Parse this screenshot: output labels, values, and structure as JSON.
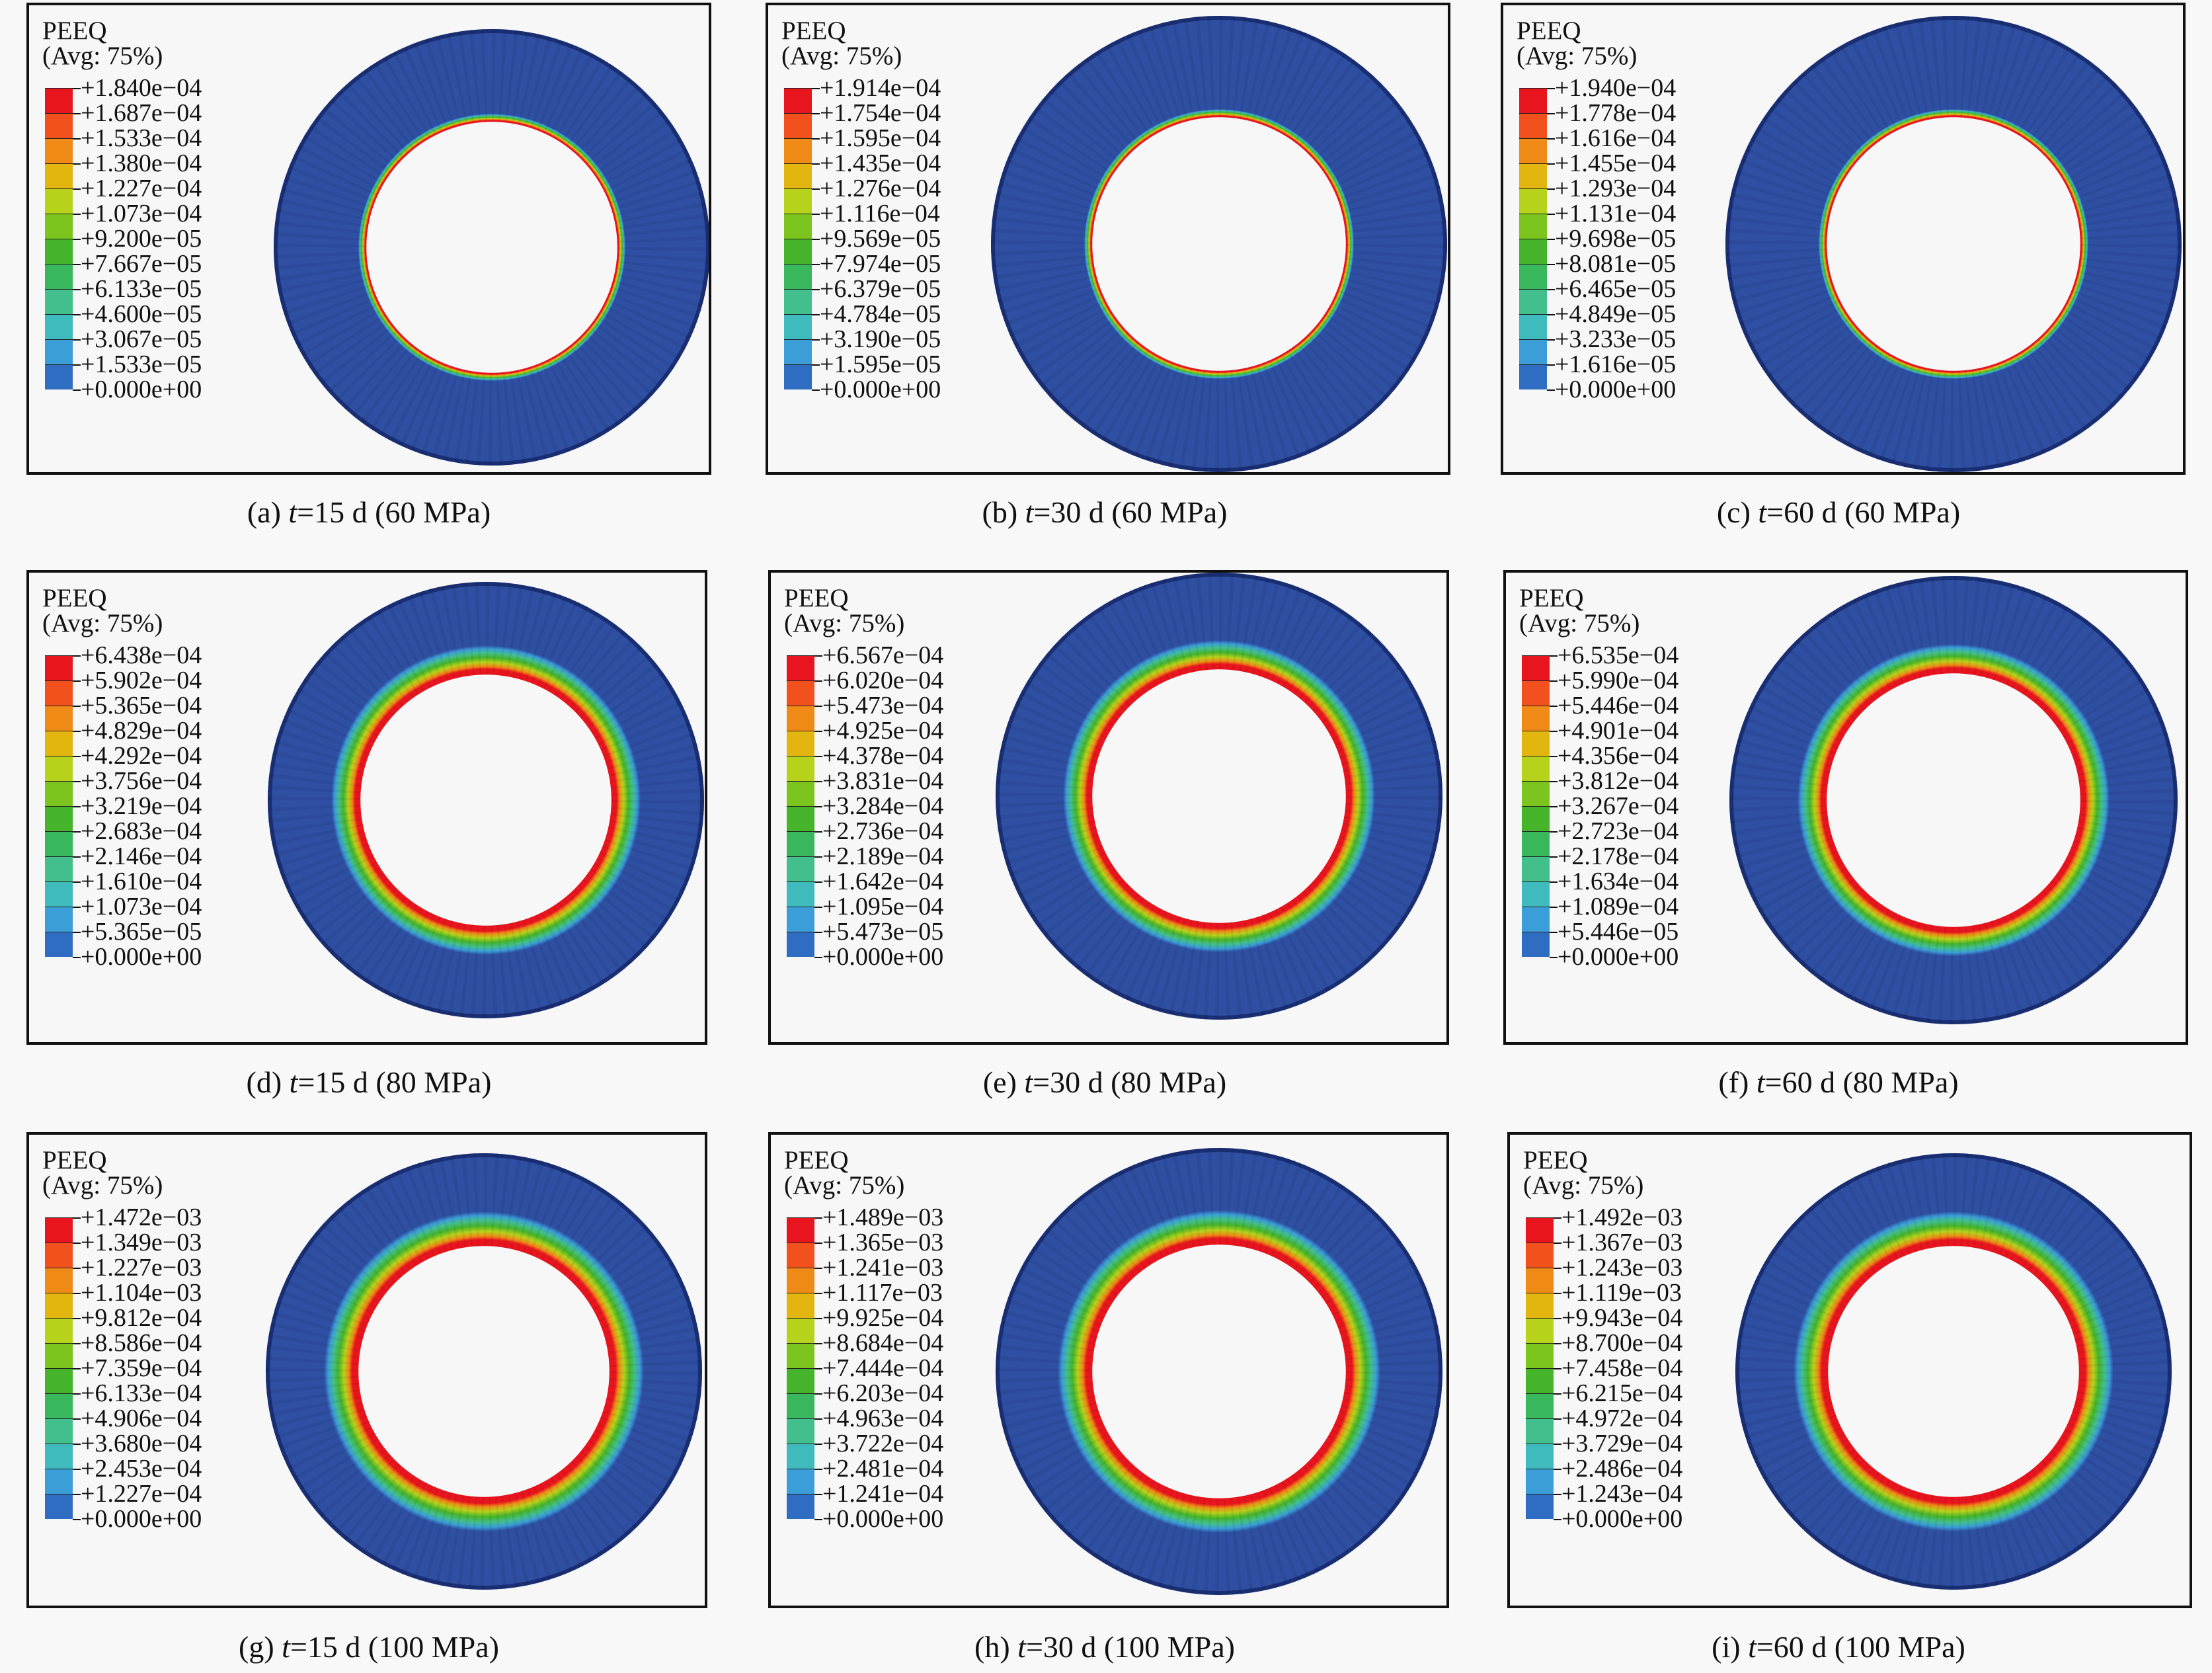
{
  "legend_title": "PEEQ",
  "legend_subtitle": "(Avg: 75%)",
  "colors": {
    "contour_levels": [
      "#e8151f",
      "#f2501c",
      "#f08a17",
      "#e2b50f",
      "#b7d21b",
      "#7cc41e",
      "#45b42b",
      "#39b75d",
      "#43bf8d",
      "#3fbabd",
      "#3b9ed8",
      "#2f6dc2",
      "#2949a4"
    ],
    "mesh_blue": "#2f4fa3",
    "hole": "#f8f8f8"
  },
  "panels": [
    {
      "letter": "(a)",
      "t_prefix": "t",
      "t_value": "=15 d",
      "pressure": "(60 MPa)",
      "values": [
        "+1.840e−04",
        "+1.687e−04",
        "+1.533e−04",
        "+1.380e−04",
        "+1.227e−04",
        "+1.073e−04",
        "+9.200e−05",
        "+7.667e−05",
        "+6.133e−05",
        "+4.600e−05",
        "+3.067e−05",
        "+1.533e−05",
        "+0.000e+00"
      ]
    },
    {
      "letter": "(b)",
      "t_prefix": "t",
      "t_value": "=30 d",
      "pressure": "(60 MPa)",
      "values": [
        "+1.914e−04",
        "+1.754e−04",
        "+1.595e−04",
        "+1.435e−04",
        "+1.276e−04",
        "+1.116e−04",
        "+9.569e−05",
        "+7.974e−05",
        "+6.379e−05",
        "+4.784e−05",
        "+3.190e−05",
        "+1.595e−05",
        "+0.000e+00"
      ]
    },
    {
      "letter": "(c)",
      "t_prefix": "t",
      "t_value": "=60 d",
      "pressure": "(60 MPa)",
      "values": [
        "+1.940e−04",
        "+1.778e−04",
        "+1.616e−04",
        "+1.455e−04",
        "+1.293e−04",
        "+1.131e−04",
        "+9.698e−05",
        "+8.081e−05",
        "+6.465e−05",
        "+4.849e−05",
        "+3.233e−05",
        "+1.616e−05",
        "+0.000e+00"
      ]
    },
    {
      "letter": "(d)",
      "t_prefix": "t",
      "t_value": "=15 d",
      "pressure": "(80 MPa)",
      "values": [
        "+6.438e−04",
        "+5.902e−04",
        "+5.365e−04",
        "+4.829e−04",
        "+4.292e−04",
        "+3.756e−04",
        "+3.219e−04",
        "+2.683e−04",
        "+2.146e−04",
        "+1.610e−04",
        "+1.073e−04",
        "+5.365e−05",
        "+0.000e+00"
      ]
    },
    {
      "letter": "(e)",
      "t_prefix": "t",
      "t_value": "=30 d",
      "pressure": "(80 MPa)",
      "values": [
        "+6.567e−04",
        "+6.020e−04",
        "+5.473e−04",
        "+4.925e−04",
        "+4.378e−04",
        "+3.831e−04",
        "+3.284e−04",
        "+2.736e−04",
        "+2.189e−04",
        "+1.642e−04",
        "+1.095e−04",
        "+5.473e−05",
        "+0.000e+00"
      ]
    },
    {
      "letter": "(f)",
      "t_prefix": "t",
      "t_value": "=60 d",
      "pressure": "(80 MPa)",
      "values": [
        "+6.535e−04",
        "+5.990e−04",
        "+5.446e−04",
        "+4.901e−04",
        "+4.356e−04",
        "+3.812e−04",
        "+3.267e−04",
        "+2.723e−04",
        "+2.178e−04",
        "+1.634e−04",
        "+1.089e−04",
        "+5.446e−05",
        "+0.000e+00"
      ]
    },
    {
      "letter": "(g)",
      "t_prefix": "t",
      "t_value": "=15 d",
      "pressure": "(100 MPa)",
      "values": [
        "+1.472e−03",
        "+1.349e−03",
        "+1.227e−03",
        "+1.104e−03",
        "+9.812e−04",
        "+8.586e−04",
        "+7.359e−04",
        "+6.133e−04",
        "+4.906e−04",
        "+3.680e−04",
        "+2.453e−04",
        "+1.227e−04",
        "+0.000e+00"
      ]
    },
    {
      "letter": "(h)",
      "t_prefix": "t",
      "t_value": "=30 d",
      "pressure": "(100 MPa)",
      "values": [
        "+1.489e−03",
        "+1.365e−03",
        "+1.241e−03",
        "+1.117e−03",
        "+9.925e−04",
        "+8.684e−04",
        "+7.444e−04",
        "+6.203e−04",
        "+4.963e−04",
        "+3.722e−04",
        "+2.481e−04",
        "+1.241e−04",
        "+0.000e+00"
      ]
    },
    {
      "letter": "(i)",
      "t_prefix": "t",
      "t_value": "=60 d",
      "pressure": "(100 MPa)",
      "values": [
        "+1.492e−03",
        "+1.367e−03",
        "+1.243e−03",
        "+1.119e−03",
        "+9.943e−04",
        "+8.700e−04",
        "+7.458e−04",
        "+6.215e−04",
        "+4.972e−04",
        "+3.729e−04",
        "+2.486e−04",
        "+1.243e−04",
        "+0.000e+00"
      ]
    }
  ]
}
